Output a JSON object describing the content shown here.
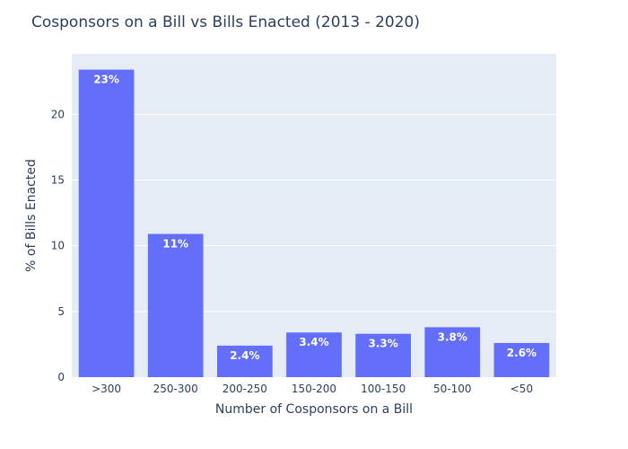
{
  "chart_data": {
    "type": "bar",
    "title": "Cosponsors on a Bill vs Bills Enacted (2013 - 2020)",
    "xlabel": "Number of Cosponsors on a Bill",
    "ylabel": "% of Bills Enacted",
    "categories": [
      ">300",
      "250-300",
      "200-250",
      "150-200",
      "100-150",
      "50-100",
      "<50"
    ],
    "values": [
      23.4,
      10.9,
      2.4,
      3.4,
      3.3,
      3.8,
      2.6
    ],
    "data_labels": [
      "23%",
      "11%",
      "2.4%",
      "3.4%",
      "3.3%",
      "3.8%",
      "2.6%"
    ],
    "ylim": [
      0,
      24.6
    ],
    "yticks": [
      0,
      5,
      10,
      15,
      20
    ],
    "grid": true,
    "legend": "none",
    "colors": {
      "bar": "#636efa",
      "plot_bg": "#e5ecf6",
      "grid": "#ffffff",
      "text": "#2a3f5f",
      "label": "#ffffff"
    }
  }
}
